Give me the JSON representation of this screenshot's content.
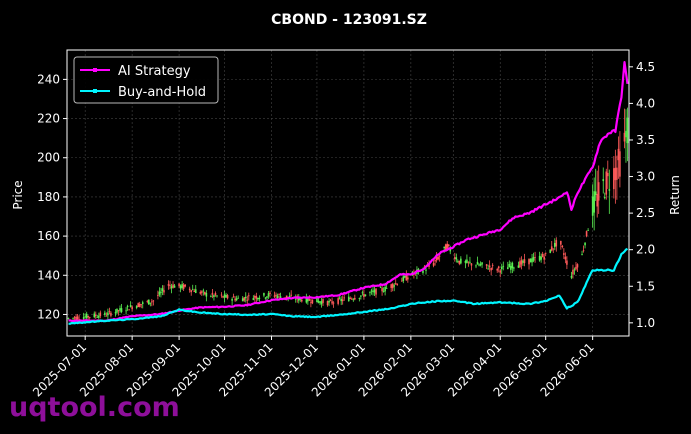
{
  "chart_data": {
    "type": "candlestick+line",
    "title": "CBOND - 123091.SZ",
    "ylabel_left": "Price",
    "ylabel_right": "Return",
    "ylim_left": [
      109,
      255
    ],
    "ylim_right": [
      0.82,
      4.73
    ],
    "xlim": [
      "2025-06-19",
      "2026-06-25"
    ],
    "y_ticks_left": [
      "120",
      "140",
      "160",
      "180",
      "200",
      "220",
      "240"
    ],
    "y_ticks_right": [
      "1.0",
      "1.5",
      "2.0",
      "2.5",
      "3.0",
      "3.5",
      "4.0",
      "4.5"
    ],
    "x_ticks": [
      "2025-07-01",
      "2025-08-01",
      "2025-09-01",
      "2025-10-01",
      "2025-11-01",
      "2025-12-01",
      "2026-01-01",
      "2026-02-01",
      "2026-03-01",
      "2026-04-01",
      "2026-05-01",
      "2026-06-01"
    ],
    "grid": true,
    "legend_position": "top-left",
    "colors": {
      "ai_strategy": "#ff00ff",
      "buy_and_hold": "#00f5ff",
      "candle_up": "#5bf053",
      "candle_down": "#ff5a5a",
      "grid": "#444444"
    },
    "series": [
      {
        "name": "AI Strategy",
        "axis": "right",
        "points": [
          [
            "2025-06-20",
            1.03
          ],
          [
            "2025-07-15",
            1.03
          ],
          [
            "2025-08-01",
            1.09
          ],
          [
            "2025-08-20",
            1.12
          ],
          [
            "2025-09-01",
            1.17
          ],
          [
            "2025-09-15",
            1.21
          ],
          [
            "2025-10-01",
            1.22
          ],
          [
            "2025-10-15",
            1.24
          ],
          [
            "2025-11-01",
            1.31
          ],
          [
            "2025-11-15",
            1.34
          ],
          [
            "2025-12-01",
            1.35
          ],
          [
            "2025-12-15",
            1.38
          ],
          [
            "2026-01-01",
            1.48
          ],
          [
            "2026-01-15",
            1.53
          ],
          [
            "2026-01-25",
            1.66
          ],
          [
            "2026-02-01",
            1.66
          ],
          [
            "2026-02-10",
            1.75
          ],
          [
            "2026-02-20",
            1.95
          ],
          [
            "2026-03-01",
            2.04
          ],
          [
            "2026-03-10",
            2.14
          ],
          [
            "2026-03-20",
            2.2
          ],
          [
            "2026-04-01",
            2.28
          ],
          [
            "2026-04-10",
            2.44
          ],
          [
            "2026-04-20",
            2.5
          ],
          [
            "2026-05-01",
            2.62
          ],
          [
            "2026-05-10",
            2.71
          ],
          [
            "2026-05-15",
            2.8
          ],
          [
            "2026-05-18",
            2.55
          ],
          [
            "2026-05-22",
            2.78
          ],
          [
            "2026-06-01",
            3.13
          ],
          [
            "2026-06-06",
            3.48
          ],
          [
            "2026-06-12",
            3.6
          ],
          [
            "2026-06-16",
            3.62
          ],
          [
            "2026-06-20",
            4.1
          ],
          [
            "2026-06-22",
            4.55
          ],
          [
            "2026-06-24",
            4.25
          ]
        ]
      },
      {
        "name": "Buy-and-Hold",
        "axis": "right",
        "points": [
          [
            "2025-06-20",
            0.99
          ],
          [
            "2025-07-15",
            1.03
          ],
          [
            "2025-08-01",
            1.05
          ],
          [
            "2025-08-20",
            1.09
          ],
          [
            "2025-09-01",
            1.18
          ],
          [
            "2025-09-15",
            1.14
          ],
          [
            "2025-10-01",
            1.12
          ],
          [
            "2025-10-20",
            1.11
          ],
          [
            "2025-11-01",
            1.12
          ],
          [
            "2025-11-15",
            1.09
          ],
          [
            "2025-12-01",
            1.08
          ],
          [
            "2025-12-20",
            1.12
          ],
          [
            "2026-01-01",
            1.15
          ],
          [
            "2026-01-20",
            1.2
          ],
          [
            "2026-02-01",
            1.26
          ],
          [
            "2026-02-20",
            1.3
          ],
          [
            "2026-03-01",
            1.3
          ],
          [
            "2026-03-15",
            1.26
          ],
          [
            "2026-04-01",
            1.28
          ],
          [
            "2026-04-20",
            1.26
          ],
          [
            "2026-05-01",
            1.3
          ],
          [
            "2026-05-10",
            1.37
          ],
          [
            "2026-05-15",
            1.2
          ],
          [
            "2026-05-22",
            1.28
          ],
          [
            "2026-06-01",
            1.72
          ],
          [
            "2026-06-08",
            1.72
          ],
          [
            "2026-06-15",
            1.72
          ],
          [
            "2026-06-20",
            1.93
          ],
          [
            "2026-06-24",
            2.02
          ]
        ]
      }
    ],
    "price_path": {
      "axis": "left",
      "points": [
        [
          "2025-06-20",
          118
        ],
        [
          "2025-07-15",
          120
        ],
        [
          "2025-08-01",
          124
        ],
        [
          "2025-08-15",
          127
        ],
        [
          "2025-08-25",
          135
        ],
        [
          "2025-09-05",
          134
        ],
        [
          "2025-09-20",
          130
        ],
        [
          "2025-10-10",
          128
        ],
        [
          "2025-11-01",
          130
        ],
        [
          "2025-11-20",
          128
        ],
        [
          "2025-12-10",
          126
        ],
        [
          "2026-01-01",
          130
        ],
        [
          "2026-01-15",
          133
        ],
        [
          "2026-02-01",
          140
        ],
        [
          "2026-02-15",
          145
        ],
        [
          "2026-02-25",
          155
        ],
        [
          "2026-03-05",
          147
        ],
        [
          "2026-03-20",
          145
        ],
        [
          "2026-04-01",
          143
        ],
        [
          "2026-04-15",
          146
        ],
        [
          "2026-05-01",
          150
        ],
        [
          "2026-05-10",
          158
        ],
        [
          "2026-05-18",
          140
        ],
        [
          "2026-05-25",
          150
        ],
        [
          "2026-06-01",
          175
        ],
        [
          "2026-06-08",
          185
        ],
        [
          "2026-06-15",
          192
        ],
        [
          "2026-06-20",
          200
        ],
        [
          "2026-06-24",
          215
        ]
      ]
    }
  },
  "watermark": "uqtool.com"
}
